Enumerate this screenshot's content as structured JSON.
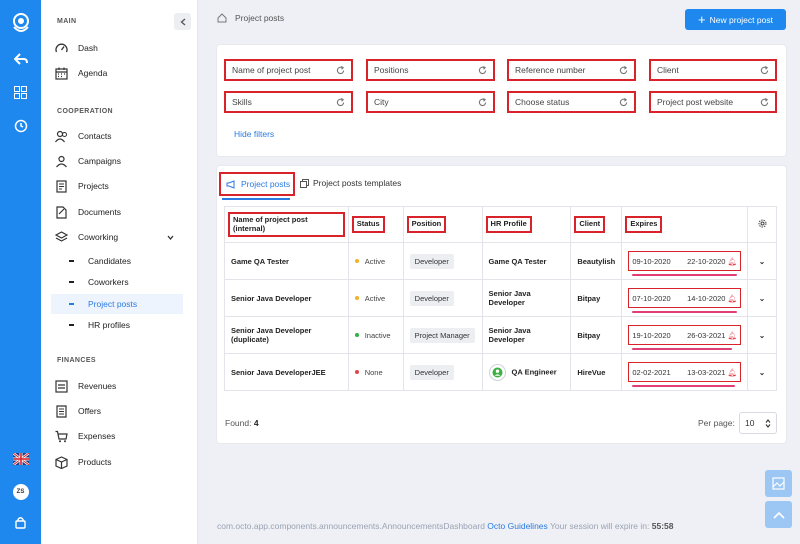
{
  "rail": {
    "user_initials": "ZS"
  },
  "sidebar": {
    "main_title": "MAIN",
    "main_items": [
      {
        "label": "Dash",
        "icon": "gauge-icon"
      },
      {
        "label": "Agenda",
        "icon": "calendar-icon"
      }
    ],
    "cooperation_title": "COOPERATION",
    "cooperation_items": [
      {
        "label": "Contacts",
        "icon": "contacts-icon"
      },
      {
        "label": "Campaigns",
        "icon": "campaign-icon"
      },
      {
        "label": "Projects",
        "icon": "projects-icon"
      },
      {
        "label": "Documents",
        "icon": "documents-icon"
      },
      {
        "label": "Coworking",
        "icon": "layers-icon"
      }
    ],
    "coworking_sub": [
      {
        "label": "Candidates"
      },
      {
        "label": "Coworkers"
      },
      {
        "label": "Project posts",
        "active": true
      },
      {
        "label": "HR profiles"
      }
    ],
    "finances_title": "FINANCES",
    "finances_items": [
      {
        "label": "Revenues",
        "icon": "revenues-icon"
      },
      {
        "label": "Offers",
        "icon": "offers-icon"
      },
      {
        "label": "Expenses",
        "icon": "cart-icon"
      },
      {
        "label": "Products",
        "icon": "box-icon"
      }
    ]
  },
  "header": {
    "breadcrumb": "Project posts",
    "new_button": "New project post"
  },
  "filters": {
    "row1": [
      "Name of project post",
      "Positions",
      "Reference number",
      "Client"
    ],
    "row2": [
      "Skills",
      "City",
      "Choose status",
      "Project post website"
    ],
    "hide_label": "Hide filters"
  },
  "tabs": {
    "active": "Project posts",
    "other": "Project posts templates"
  },
  "table": {
    "headers": {
      "name": "Name of project post (internal)",
      "status": "Status",
      "position": "Position",
      "hr_profile": "HR Profile",
      "client": "Client",
      "expires": "Expires"
    },
    "rows": [
      {
        "name": "Game QA Tester",
        "status": "Active",
        "status_color": "#f0b323",
        "position": "Developer",
        "hr": "Game QA Tester",
        "client": "Beautylish",
        "start": "09-10-2020",
        "end": "22-10-2020",
        "progress": 1.0
      },
      {
        "name": "Senior Java Developer",
        "status": "Active",
        "status_color": "#f0b323",
        "position": "Developer",
        "hr": "Senior Java Developer",
        "client": "Bitpay",
        "start": "07-10-2020",
        "end": "14-10-2020",
        "progress": 1.0
      },
      {
        "name": "Senior Java Developer (duplicate)",
        "status": "Inactive",
        "status_color": "#2fb344",
        "position": "Project Manager",
        "hr": "Senior Java Developer",
        "client": "Bitpay",
        "start": "19-10-2020",
        "end": "26-03-2021",
        "progress": 0.95
      },
      {
        "name": "Senior Java DeveloperJEE",
        "status": "None",
        "status_color": "#e5424d",
        "position": "Developer",
        "hr": "QA Engineer",
        "client": "HireVue",
        "start": "02-02-2021",
        "end": "13-03-2021",
        "progress": 0.98
      }
    ]
  },
  "pagination": {
    "found_label": "Found:",
    "found_count": "4",
    "per_page_label": "Per page:",
    "per_page_value": "10"
  },
  "footer": {
    "text": "com.octo.app.components.announcements.AnnouncementsDashboard",
    "link": "Octo Guidelines",
    "session": "Your session will expire in:",
    "timer": "55:58"
  },
  "colors": {
    "accent": "#1e88ee",
    "highlight": "#d8232a",
    "expires_bar": "#e03e74"
  }
}
